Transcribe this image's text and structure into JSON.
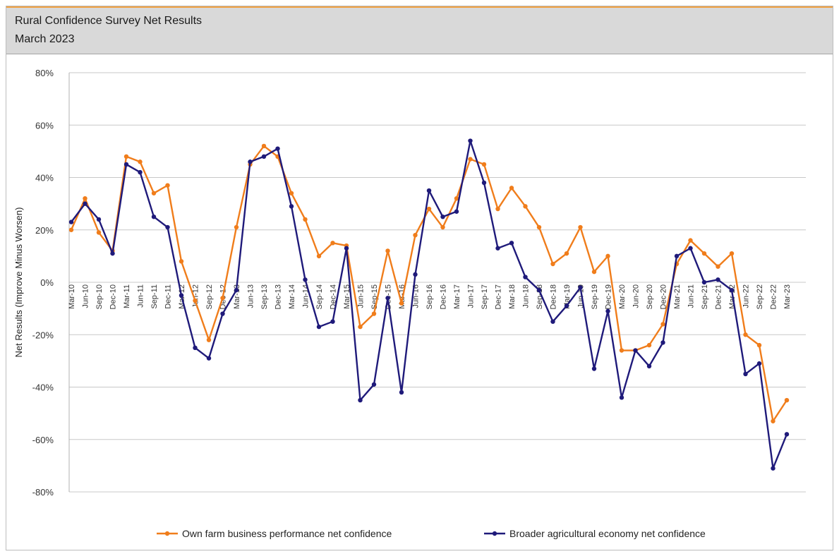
{
  "header": {
    "title": "Rural Confidence Survey Net Results",
    "subtitle": "March 2023"
  },
  "chart_data": {
    "type": "line",
    "ylabel": "Net Results (Improve Minus Worsen)",
    "xlabel": "",
    "ylim": [
      -80,
      80
    ],
    "yticks": [
      -80,
      -60,
      -40,
      -20,
      0,
      20,
      40,
      60,
      80
    ],
    "ytick_labels": [
      "-80%",
      "-60%",
      "-40%",
      "-20%",
      "0%",
      "20%",
      "40%",
      "60%",
      "80%"
    ],
    "grid": "horizontal",
    "legend_position": "bottom",
    "x": [
      "Mar-10",
      "Jun-10",
      "Sep-10",
      "Dec-10",
      "Mar-11",
      "Jun-11",
      "Sep-11",
      "Dec-11",
      "Mar-12",
      "Jun-12",
      "Sep-12",
      "Dec-12",
      "Mar-13",
      "Jun-13",
      "Sep-13",
      "Dec-13",
      "Mar-14",
      "Jun-14",
      "Sep-14",
      "Dec-14",
      "Mar-15",
      "Jun-15",
      "Sep-15",
      "Dec-15",
      "Mar-16",
      "Jun-16",
      "Sep-16",
      "Dec-16",
      "Mar-17",
      "Jun-17",
      "Sep-17",
      "Dec-17",
      "Mar-18",
      "Jun-18",
      "Sep-18",
      "Dec-18",
      "Mar-19",
      "Jun-19",
      "Sep-19",
      "Dec-19",
      "Mar-20",
      "Jun-20",
      "Sep-20",
      "Dec-20",
      "Mar-21",
      "Jun-21",
      "Sep-21",
      "Dec-21",
      "Mar-22",
      "Jun-22",
      "Sep-22",
      "Dec-22",
      "Mar-23"
    ],
    "series": [
      {
        "name": "Own farm business performance net confidence",
        "color": "#f07d1b",
        "values": [
          20,
          32,
          19,
          12,
          48,
          46,
          34,
          37,
          8,
          -7,
          -22,
          -6,
          21,
          45,
          52,
          48,
          34,
          24,
          10,
          15,
          14,
          -17,
          -12,
          12,
          -8,
          18,
          28,
          21,
          32,
          47,
          45,
          28,
          36,
          29,
          21,
          7,
          11,
          21,
          4,
          10,
          -26,
          -26,
          -24,
          -16,
          7,
          16,
          11,
          6,
          11,
          -20,
          -24,
          -53,
          -45
        ]
      },
      {
        "name": "Broader agricultural economy net confidence",
        "color": "#1f1a7a",
        "values": [
          23,
          30,
          24,
          11,
          45,
          42,
          25,
          21,
          -5,
          -25,
          -29,
          -12,
          -3,
          46,
          48,
          51,
          29,
          1,
          -17,
          -15,
          13,
          -45,
          -39,
          -6,
          -42,
          3,
          35,
          25,
          27,
          54,
          38,
          13,
          15,
          2,
          -3,
          -15,
          -9,
          -2,
          -33,
          -11,
          -44,
          -26,
          -32,
          -23,
          10,
          13,
          0,
          1,
          -3,
          -35,
          -31,
          -71,
          -58
        ]
      }
    ]
  }
}
